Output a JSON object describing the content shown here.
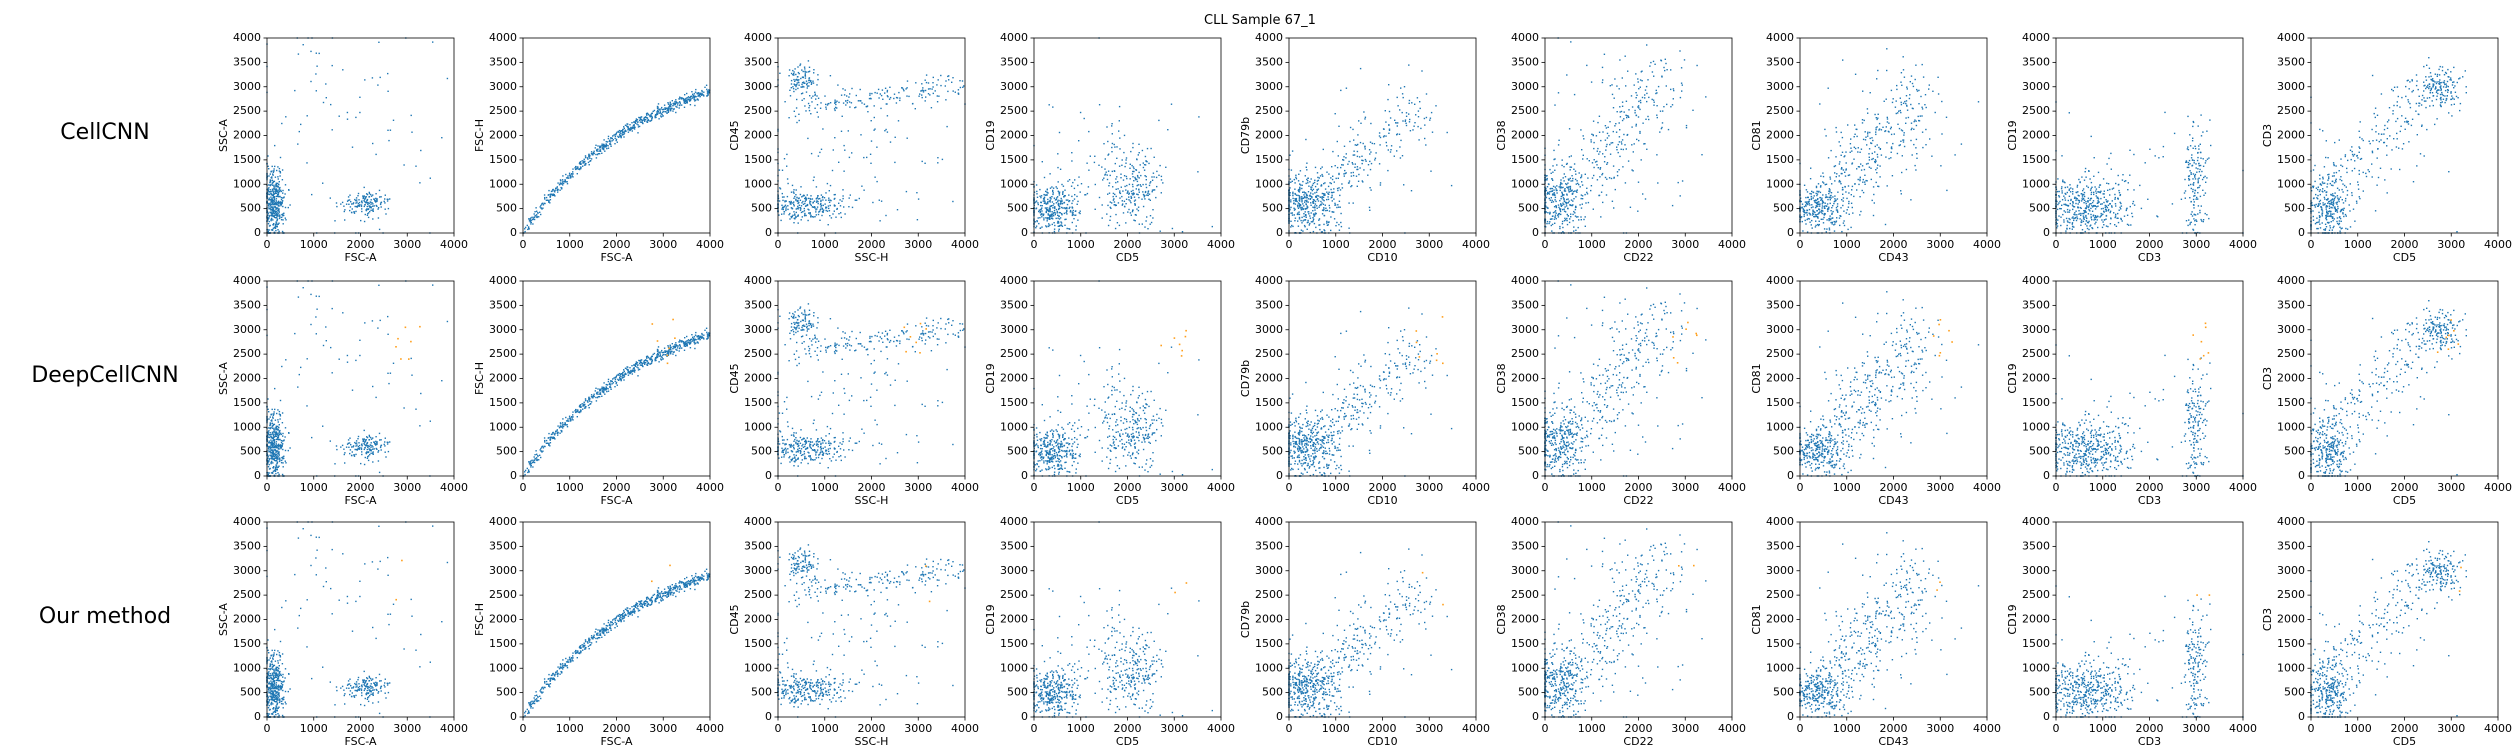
{
  "title": "CLL Sample 67_1",
  "rows": [
    {
      "label": "CellCNN",
      "highlight": "none"
    },
    {
      "label": "DeepCellCNN",
      "highlight": "scattered"
    },
    {
      "label": "Our method",
      "highlight": "rare"
    }
  ],
  "colors": {
    "cells": "#1f77b4",
    "selected": "#ff9f1c",
    "axes": "#000000"
  },
  "tick_values": [
    "0",
    "500",
    "1000",
    "1500",
    "2000",
    "2500",
    "3000",
    "3500",
    "4000"
  ],
  "x_ticks": [
    "0",
    "1000",
    "2000",
    "3000",
    "4000"
  ],
  "chart_data": {
    "type": "scatter",
    "xlim": [
      0,
      4000
    ],
    "ylim": [
      0,
      4000
    ],
    "grid": false,
    "panels": [
      {
        "xlabel": "FSC-A",
        "ylabel": "SSC-A"
      },
      {
        "xlabel": "FSC-A",
        "ylabel": "FSC-H"
      },
      {
        "xlabel": "SSC-H",
        "ylabel": "CD45"
      },
      {
        "xlabel": "CD5",
        "ylabel": "CD19"
      },
      {
        "xlabel": "CD10",
        "ylabel": "CD79b"
      },
      {
        "xlabel": "CD22",
        "ylabel": "CD38"
      },
      {
        "xlabel": "CD43",
        "ylabel": "CD81"
      },
      {
        "xlabel": "CD3",
        "ylabel": "CD19"
      },
      {
        "xlabel": "CD5",
        "ylabel": "CD3"
      }
    ],
    "populations": [
      [
        {
          "cx": 150,
          "cy": 600,
          "sx": 120,
          "sy": 350,
          "w": 50
        },
        {
          "cx": 2100,
          "cy": 600,
          "sx": 250,
          "sy": 120,
          "w": 20
        },
        {
          "cx": 1500,
          "cy": 2000,
          "sx": 1300,
          "sy": 1200,
          "w": 10
        }
      ],
      [
        {
          "type": "curve",
          "w": 100
        }
      ],
      [
        {
          "cx": 500,
          "cy": 3150,
          "sx": 150,
          "sy": 150,
          "w": 15
        },
        {
          "type": "band",
          "x0": 300,
          "x1": 4000,
          "y0": 2550,
          "y1": 3050,
          "sy": 120,
          "w": 25
        },
        {
          "cx": 600,
          "cy": 550,
          "sx": 400,
          "sy": 150,
          "w": 40
        },
        {
          "cx": 1500,
          "cy": 1500,
          "sx": 1200,
          "sy": 800,
          "w": 15
        }
      ],
      [
        {
          "cx": 400,
          "cy": 500,
          "sx": 300,
          "sy": 250,
          "w": 55
        },
        {
          "cx": 2100,
          "cy": 900,
          "sx": 350,
          "sy": 400,
          "w": 35
        },
        {
          "cx": 1500,
          "cy": 1500,
          "sx": 900,
          "sy": 700,
          "w": 10
        }
      ],
      [
        {
          "cx": 400,
          "cy": 600,
          "sx": 350,
          "sy": 300,
          "w": 60
        },
        {
          "type": "diag",
          "x0": 500,
          "y0": 700,
          "x1": 2800,
          "y1": 2500,
          "sx": 200,
          "sy": 250,
          "w": 30
        },
        {
          "cx": 1800,
          "cy": 1800,
          "sx": 900,
          "sy": 900,
          "w": 10
        }
      ],
      [
        {
          "cx": 300,
          "cy": 700,
          "sx": 300,
          "sy": 350,
          "w": 55
        },
        {
          "type": "diag",
          "x0": 800,
          "y0": 1000,
          "x1": 2600,
          "y1": 3300,
          "sx": 300,
          "sy": 400,
          "w": 35
        },
        {
          "cx": 1500,
          "cy": 2000,
          "sx": 800,
          "sy": 900,
          "w": 10
        }
      ],
      [
        {
          "cx": 400,
          "cy": 500,
          "sx": 300,
          "sy": 250,
          "w": 45
        },
        {
          "type": "diag",
          "x0": 700,
          "y0": 800,
          "x1": 2600,
          "y1": 2800,
          "sx": 250,
          "sy": 400,
          "w": 40
        },
        {
          "cx": 1800,
          "cy": 2000,
          "sx": 800,
          "sy": 800,
          "w": 15
        }
      ],
      [
        {
          "cx": 700,
          "cy": 550,
          "sx": 450,
          "sy": 280,
          "w": 70
        },
        {
          "cx": 3000,
          "cy": 1000,
          "sx": 120,
          "sy": 600,
          "w": 25
        },
        {
          "cx": 1800,
          "cy": 1500,
          "sx": 1200,
          "sy": 900,
          "w": 5
        }
      ],
      [
        {
          "cx": 350,
          "cy": 500,
          "sx": 250,
          "sy": 350,
          "w": 45
        },
        {
          "cx": 2750,
          "cy": 3000,
          "sx": 250,
          "sy": 200,
          "w": 25
        },
        {
          "type": "diag",
          "x0": 500,
          "y0": 800,
          "x1": 2400,
          "y1": 2800,
          "sx": 250,
          "sy": 350,
          "w": 25
        },
        {
          "cx": 1500,
          "cy": 1500,
          "sx": 900,
          "sy": 900,
          "w": 5
        }
      ]
    ]
  }
}
